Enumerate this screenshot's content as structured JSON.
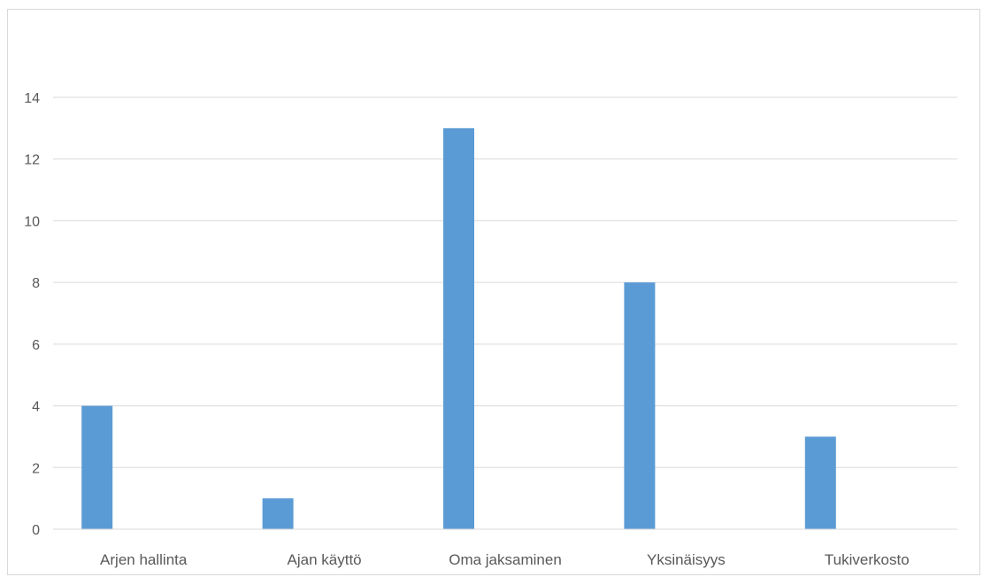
{
  "chart_data": {
    "type": "bar",
    "title": "",
    "xlabel": "",
    "ylabel": "",
    "categories": [
      "Arjen hallinta",
      "Ajan käyttö",
      "Oma jaksaminen",
      "Yksinäisyys",
      "Tukiverkosto"
    ],
    "series": [
      {
        "values": [
          4,
          1,
          13,
          8,
          3
        ],
        "color": "#5b9bd5"
      }
    ],
    "ylim": [
      0,
      14
    ],
    "yticks": [
      0,
      2,
      4,
      6,
      8,
      10,
      12,
      14
    ],
    "grid": true,
    "legend": "none"
  }
}
